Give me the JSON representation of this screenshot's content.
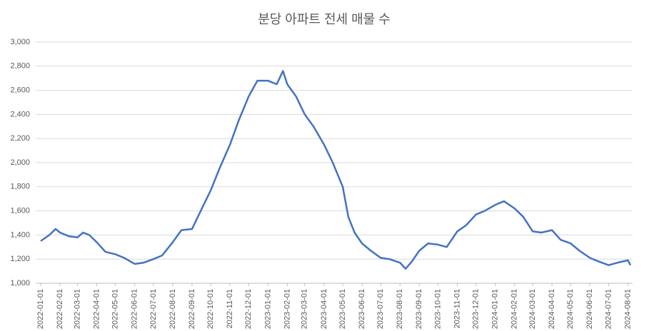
{
  "chart_data": {
    "type": "line",
    "title": "분당 아파트 전세 매물 수",
    "x": [
      "2022-01-01",
      "2022-01-15",
      "2022-01-25",
      "2022-02-01",
      "2022-02-15",
      "2022-03-01",
      "2022-03-10",
      "2022-03-20",
      "2022-04-01",
      "2022-04-15",
      "2022-05-01",
      "2022-05-15",
      "2022-06-01",
      "2022-06-15",
      "2022-07-01",
      "2022-07-15",
      "2022-08-01",
      "2022-08-15",
      "2022-09-01",
      "2022-09-15",
      "2022-10-01",
      "2022-10-15",
      "2022-11-01",
      "2022-11-15",
      "2022-12-01",
      "2022-12-15",
      "2023-01-01",
      "2023-01-15",
      "2023-01-25",
      "2023-02-01",
      "2023-02-15",
      "2023-03-01",
      "2023-03-15",
      "2023-04-01",
      "2023-04-15",
      "2023-05-01",
      "2023-05-10",
      "2023-05-20",
      "2023-06-01",
      "2023-06-15",
      "2023-07-01",
      "2023-07-15",
      "2023-08-01",
      "2023-08-10",
      "2023-08-20",
      "2023-09-01",
      "2023-09-15",
      "2023-10-01",
      "2023-10-15",
      "2023-11-01",
      "2023-11-15",
      "2023-12-01",
      "2023-12-15",
      "2024-01-01",
      "2024-01-15",
      "2024-02-01",
      "2024-02-15",
      "2024-03-01",
      "2024-03-15",
      "2024-04-01",
      "2024-04-15",
      "2024-05-01",
      "2024-05-15",
      "2024-06-01",
      "2024-06-15",
      "2024-07-01",
      "2024-07-15",
      "2024-08-01",
      "2024-08-05"
    ],
    "series": [
      {
        "name": "분당 아파트 전세 매물 수",
        "color": "#4472c4",
        "values": [
          1350,
          1400,
          1450,
          1420,
          1390,
          1380,
          1420,
          1400,
          1340,
          1260,
          1240,
          1210,
          1160,
          1170,
          1200,
          1230,
          1340,
          1440,
          1450,
          1600,
          1770,
          1950,
          2150,
          2350,
          2550,
          2680,
          2680,
          2650,
          2760,
          2650,
          2550,
          2400,
          2300,
          2150,
          2000,
          1800,
          1550,
          1420,
          1330,
          1270,
          1210,
          1200,
          1170,
          1120,
          1180,
          1270,
          1330,
          1320,
          1300,
          1430,
          1480,
          1570,
          1600,
          1650,
          1680,
          1620,
          1550,
          1430,
          1420,
          1440,
          1360,
          1330,
          1270,
          1210,
          1180,
          1150,
          1170,
          1190,
          1150
        ]
      }
    ],
    "xlim": [
      "2022-01-01",
      "2024-08-05"
    ],
    "xticks": [
      "2022-01-01",
      "2022-02-01",
      "2022-03-01",
      "2022-04-01",
      "2022-05-01",
      "2022-06-01",
      "2022-07-01",
      "2022-08-01",
      "2022-09-01",
      "2022-10-01",
      "2022-11-01",
      "2022-12-01",
      "2023-01-01",
      "2023-02-01",
      "2023-03-01",
      "2023-04-01",
      "2023-05-01",
      "2023-06-01",
      "2023-07-01",
      "2023-08-01",
      "2023-09-01",
      "2023-10-01",
      "2023-11-01",
      "2023-12-01",
      "2024-01-01",
      "2024-02-01",
      "2024-03-01",
      "2024-04-01",
      "2024-05-01",
      "2024-06-01",
      "2024-07-01",
      "2024-08-01"
    ],
    "ylim": [
      1000,
      3000
    ],
    "yticks": [
      {
        "value": 1000,
        "label": "1,000"
      },
      {
        "value": 1200,
        "label": "1,200"
      },
      {
        "value": 1400,
        "label": "1,400"
      },
      {
        "value": 1600,
        "label": "1,600"
      },
      {
        "value": 1800,
        "label": "1,800"
      },
      {
        "value": 2000,
        "label": "2,000"
      },
      {
        "value": 2200,
        "label": "2,200"
      },
      {
        "value": 2400,
        "label": "2,400"
      },
      {
        "value": 2600,
        "label": "2,600"
      },
      {
        "value": 2800,
        "label": "2,800"
      },
      {
        "value": 3000,
        "label": "3,000"
      }
    ],
    "grid": true
  }
}
